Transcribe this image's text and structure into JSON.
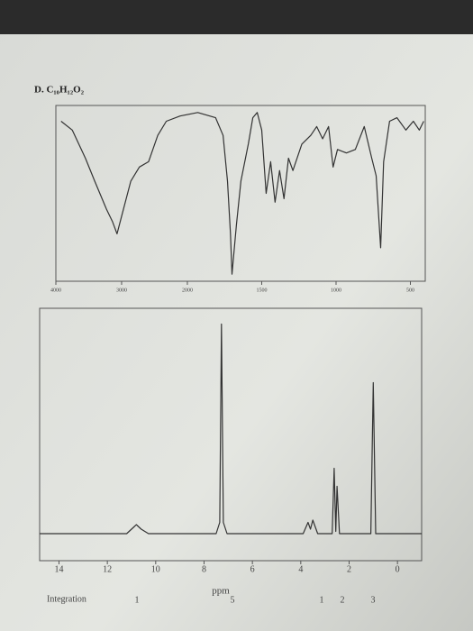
{
  "chart_data": [
    {
      "type": "line",
      "title": "D. C₁₀H₁₂O₂",
      "x": [
        3920,
        3750,
        3550,
        3410,
        3230,
        3140,
        3070,
        3000,
        2860,
        2730,
        2590,
        2450,
        2320,
        2110,
        1930,
        1810,
        1760,
        1730,
        1710,
        1700,
        1670,
        1640,
        1590,
        1560,
        1530,
        1500,
        1470,
        1440,
        1410,
        1380,
        1350,
        1320,
        1290,
        1230,
        1170,
        1130,
        1090,
        1050,
        1020,
        990,
        930,
        870,
        810,
        760,
        730,
        700,
        680,
        640,
        590,
        530,
        480,
        440,
        410
      ],
      "values": [
        91,
        86,
        70,
        57,
        41,
        34,
        27,
        37,
        57,
        65,
        68,
        83,
        91,
        94,
        96,
        93,
        83,
        57,
        27,
        4,
        32,
        57,
        78,
        93,
        96,
        86,
        50,
        68,
        45,
        63,
        47,
        70,
        63,
        78,
        83,
        88,
        81,
        88,
        65,
        75,
        73,
        75,
        88,
        70,
        60,
        19,
        68,
        91,
        93,
        86,
        91,
        86,
        91
      ],
      "color": "#333333",
      "xlim": [
        4000,
        400
      ],
      "x_scale_break": 2000,
      "xticks": [
        4000,
        3000,
        2000,
        1500,
        1000,
        500
      ],
      "ylim": [
        0,
        100
      ]
    },
    {
      "type": "line",
      "x": [
        14.8,
        11.2,
        10.9,
        10.8,
        10.6,
        10.3,
        7.5,
        7.35,
        7.28,
        7.2,
        7.05,
        3.9,
        3.7,
        3.6,
        3.5,
        3.3,
        2.7,
        2.62,
        2.55,
        2.5,
        2.4,
        1.1,
        1.0,
        0.9,
        -1
      ],
      "values": [
        0,
        0,
        3,
        4,
        2,
        0,
        0,
        5,
        93,
        5,
        0,
        0,
        5,
        2,
        6,
        0,
        0,
        29,
        1,
        21,
        0,
        0,
        67,
        0,
        0
      ],
      "color": "#333333",
      "xlim": [
        14.8,
        -1
      ],
      "xticks": [
        14,
        12,
        10,
        8,
        6,
        4,
        2,
        0
      ],
      "xlabel": "ppm",
      "ylim": [
        -12,
        100
      ],
      "integration_label": "Integration",
      "integration": [
        1,
        5,
        1,
        2,
        3
      ]
    }
  ]
}
